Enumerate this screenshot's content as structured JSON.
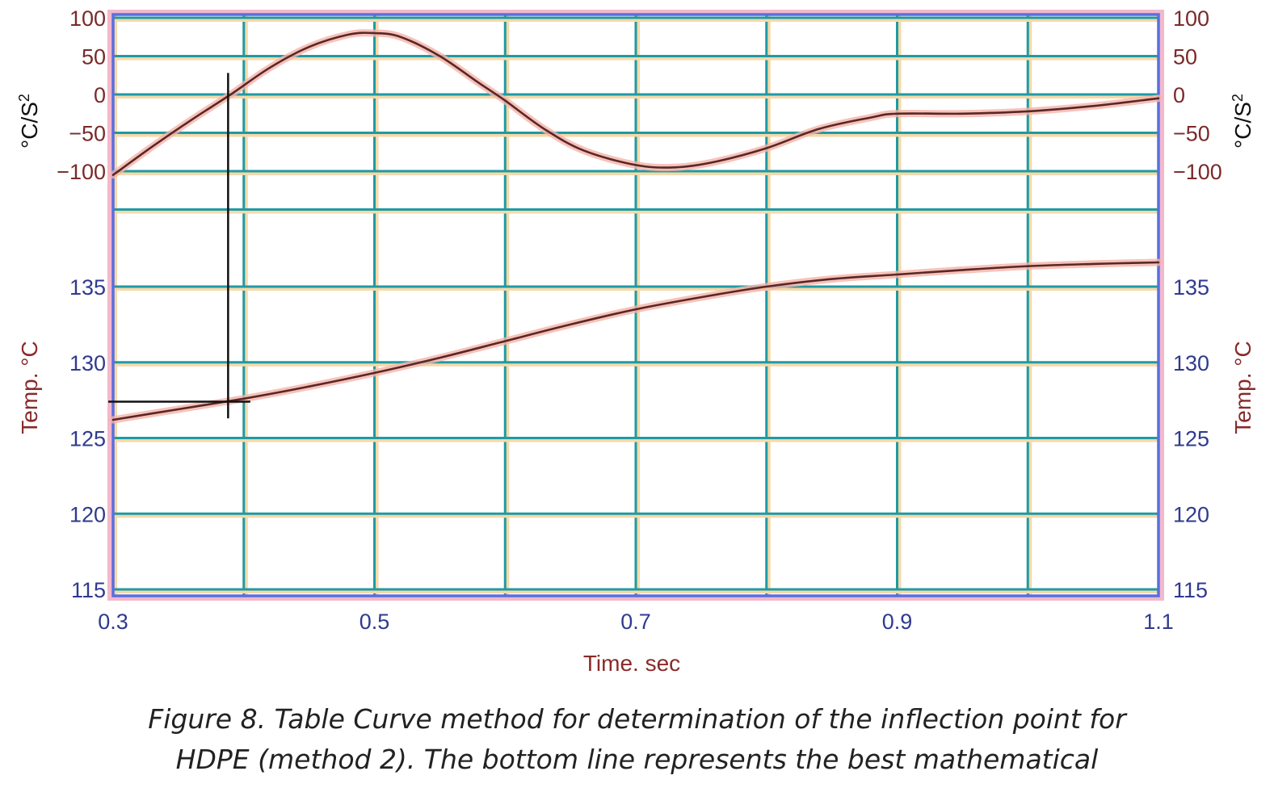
{
  "chart_data": {
    "type": "line",
    "xlabel": "Time. sec",
    "x_ticks": [
      "0.3",
      "0.5",
      "0.7",
      "0.9",
      "1.1"
    ],
    "xlim": [
      0.3,
      1.1
    ],
    "x_gridlines": [
      0.3,
      0.4,
      0.5,
      0.6,
      0.7,
      0.8,
      0.9,
      1.0,
      1.1
    ],
    "upper_axis": {
      "label": "°C/S",
      "label_sup": "2",
      "ticks": [
        "100",
        "50",
        "0",
        "−50",
        "−100"
      ],
      "ylim": [
        -100,
        100
      ],
      "extra_gridline": -150
    },
    "lower_axis": {
      "label": "Temp. °C",
      "ticks": [
        "135",
        "130",
        "125",
        "120",
        "115"
      ],
      "ylim": [
        115,
        135
      ],
      "top_value": 136.5
    },
    "series": [
      {
        "axis": "upper",
        "x": [
          0.3,
          0.33,
          0.36,
          0.39,
          0.42,
          0.45,
          0.48,
          0.5,
          0.52,
          0.55,
          0.58,
          0.6,
          0.63,
          0.66,
          0.7,
          0.73,
          0.76,
          0.8,
          0.84,
          0.88,
          0.9,
          0.95,
          1.0,
          1.05,
          1.1
        ],
        "y": [
          -105,
          -68,
          -33,
          0,
          35,
          62,
          78,
          80,
          75,
          50,
          15,
          -8,
          -45,
          -73,
          -92,
          -95,
          -88,
          -70,
          -45,
          -30,
          -25,
          -25,
          -22,
          -15,
          -5
        ]
      },
      {
        "axis": "lower",
        "x": [
          0.3,
          0.35,
          0.4,
          0.45,
          0.5,
          0.55,
          0.6,
          0.65,
          0.7,
          0.75,
          0.8,
          0.85,
          0.9,
          0.95,
          1.0,
          1.05,
          1.1
        ],
        "y": [
          126.2,
          126.9,
          127.6,
          128.4,
          129.3,
          130.3,
          131.4,
          132.5,
          133.5,
          134.3,
          135.0,
          135.5,
          135.8,
          136.1,
          136.35,
          136.5,
          136.6
        ]
      }
    ],
    "inflection": {
      "x": 0.388,
      "y_temp": 127.4,
      "y_upper_top": 28,
      "y_lower_bottom": 126.3
    },
    "grid": true
  },
  "caption": {
    "line1": "Figure 8. Table Curve method for determination of the inflection point for",
    "line2": "HDPE (method 2). The bottom line represents the best mathematical"
  },
  "colors": {
    "frame": "#5a6ee0",
    "frame_shadow": "#f2b8cc",
    "grid": "#1f9aa5",
    "grid_shadow": "#f5d9a8",
    "curve": "#5a2626",
    "curve_halo": "#f4b3a8"
  }
}
